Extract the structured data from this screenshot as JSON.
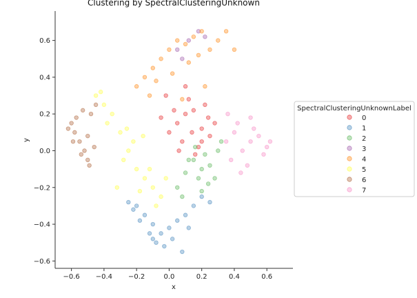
{
  "chart_data": {
    "type": "scatter",
    "title": "Clustering by SpectralClusteringUnknown",
    "xlabel": "x",
    "ylabel": "y",
    "xlim": [
      -0.7,
      0.76
    ],
    "ylim": [
      -0.64,
      0.76
    ],
    "xticks": [
      -0.6,
      -0.4,
      -0.2,
      0.0,
      0.2,
      0.4,
      0.6
    ],
    "xtick_labels": [
      "−0.6",
      "−0.4",
      "−0.2",
      "0.0",
      "0.2",
      "0.4",
      "0.6"
    ],
    "yticks": [
      -0.6,
      -0.4,
      -0.2,
      0.0,
      0.2,
      0.4,
      0.6
    ],
    "ytick_labels": [
      "−0.6",
      "−0.4",
      "−0.2",
      "0.0",
      "0.2",
      "0.4",
      "0.6"
    ],
    "grid": false,
    "legend": {
      "title": "SpectralClusteringUnknownLabel",
      "placement": "center-right-outside"
    },
    "marker_alpha": 0.35,
    "series": [
      {
        "name": "0",
        "color": "#e41a1c",
        "x": [
          0.0,
          0.05,
          0.1,
          0.15,
          0.2,
          0.25,
          -0.05,
          0.08,
          0.18,
          0.22,
          0.12,
          0.03,
          0.28,
          -0.02,
          0.16,
          0.1,
          0.06,
          0.2,
          0.24,
          0.14
        ],
        "y": [
          0.1,
          0.15,
          0.2,
          0.22,
          0.12,
          0.08,
          0.18,
          0.05,
          0.02,
          0.25,
          0.28,
          0.22,
          0.15,
          0.3,
          -0.02,
          0.35,
          0.0,
          0.05,
          0.18,
          0.1
        ]
      },
      {
        "name": "1",
        "color": "#377eb8",
        "x": [
          -0.2,
          -0.15,
          -0.1,
          -0.05,
          0.0,
          0.05,
          0.1,
          -0.25,
          -0.12,
          -0.08,
          0.02,
          0.15,
          0.2,
          -0.18,
          -0.03,
          0.08,
          0.12,
          -0.22,
          0.25,
          -0.1
        ],
        "y": [
          -0.3,
          -0.35,
          -0.4,
          -0.45,
          -0.42,
          -0.38,
          -0.35,
          -0.28,
          -0.45,
          -0.5,
          -0.48,
          -0.3,
          -0.25,
          -0.38,
          -0.52,
          -0.55,
          -0.42,
          -0.32,
          -0.28,
          -0.48
        ]
      },
      {
        "name": "2",
        "color": "#4daf4a",
        "x": [
          0.15,
          0.2,
          0.25,
          0.3,
          0.1,
          0.05,
          0.18,
          0.22,
          0.28,
          0.12,
          0.08,
          0.32,
          0.16,
          0.24,
          0.2
        ],
        "y": [
          -0.05,
          -0.1,
          -0.08,
          0.0,
          -0.12,
          -0.2,
          -0.15,
          -0.02,
          -0.15,
          -0.05,
          -0.25,
          0.05,
          0.02,
          -0.18,
          -0.22
        ]
      },
      {
        "name": "3",
        "color": "#984ea3",
        "x": [
          0.05,
          0.12,
          0.18,
          0.22,
          0.08
        ],
        "y": [
          0.55,
          0.6,
          0.65,
          0.62,
          0.5
        ]
      },
      {
        "name": "4",
        "color": "#ff7f00",
        "x": [
          -0.1,
          -0.05,
          0.0,
          0.05,
          0.1,
          0.15,
          0.2,
          0.25,
          -0.15,
          -0.2,
          -0.08,
          0.02,
          0.12,
          0.18,
          0.3,
          0.35,
          -0.12,
          0.08,
          0.22,
          0.4
        ],
        "y": [
          0.45,
          0.5,
          0.55,
          0.6,
          0.58,
          0.62,
          0.65,
          0.55,
          0.4,
          0.35,
          0.38,
          0.42,
          0.48,
          0.52,
          0.6,
          0.65,
          0.3,
          0.28,
          0.35,
          0.55
        ]
      },
      {
        "name": "5",
        "color": "#ffff33",
        "x": [
          -0.45,
          -0.4,
          -0.35,
          -0.3,
          -0.25,
          -0.2,
          -0.15,
          -0.1,
          -0.05,
          -0.28,
          -0.22,
          -0.18,
          -0.12,
          -0.38,
          -0.42,
          -0.32,
          -0.08,
          -0.02,
          -0.26,
          -0.16
        ],
        "y": [
          0.3,
          0.25,
          0.2,
          0.1,
          0.0,
          -0.1,
          -0.15,
          -0.2,
          -0.25,
          -0.05,
          0.05,
          -0.22,
          -0.1,
          0.15,
          0.32,
          -0.2,
          -0.3,
          -0.15,
          0.12,
          0.08
        ]
      },
      {
        "name": "6",
        "color": "#a65628",
        "x": [
          -0.6,
          -0.58,
          -0.55,
          -0.52,
          -0.5,
          -0.48,
          -0.45,
          -0.62,
          -0.57,
          -0.54,
          -0.5,
          -0.46,
          -0.59,
          -0.53,
          -0.49
        ],
        "y": [
          0.15,
          0.1,
          0.05,
          0.0,
          -0.05,
          0.2,
          0.25,
          0.12,
          0.18,
          -0.02,
          0.08,
          0.02,
          0.05,
          0.22,
          -0.08
        ]
      },
      {
        "name": "7",
        "color": "#f781bf",
        "x": [
          0.35,
          0.4,
          0.45,
          0.5,
          0.55,
          0.6,
          0.38,
          0.42,
          0.48,
          0.52,
          0.58,
          0.62,
          0.36,
          0.44,
          0.5
        ],
        "y": [
          0.05,
          0.1,
          0.0,
          0.05,
          0.08,
          0.02,
          -0.05,
          0.15,
          -0.08,
          0.12,
          -0.02,
          0.05,
          0.2,
          -0.12,
          0.18
        ]
      }
    ]
  }
}
